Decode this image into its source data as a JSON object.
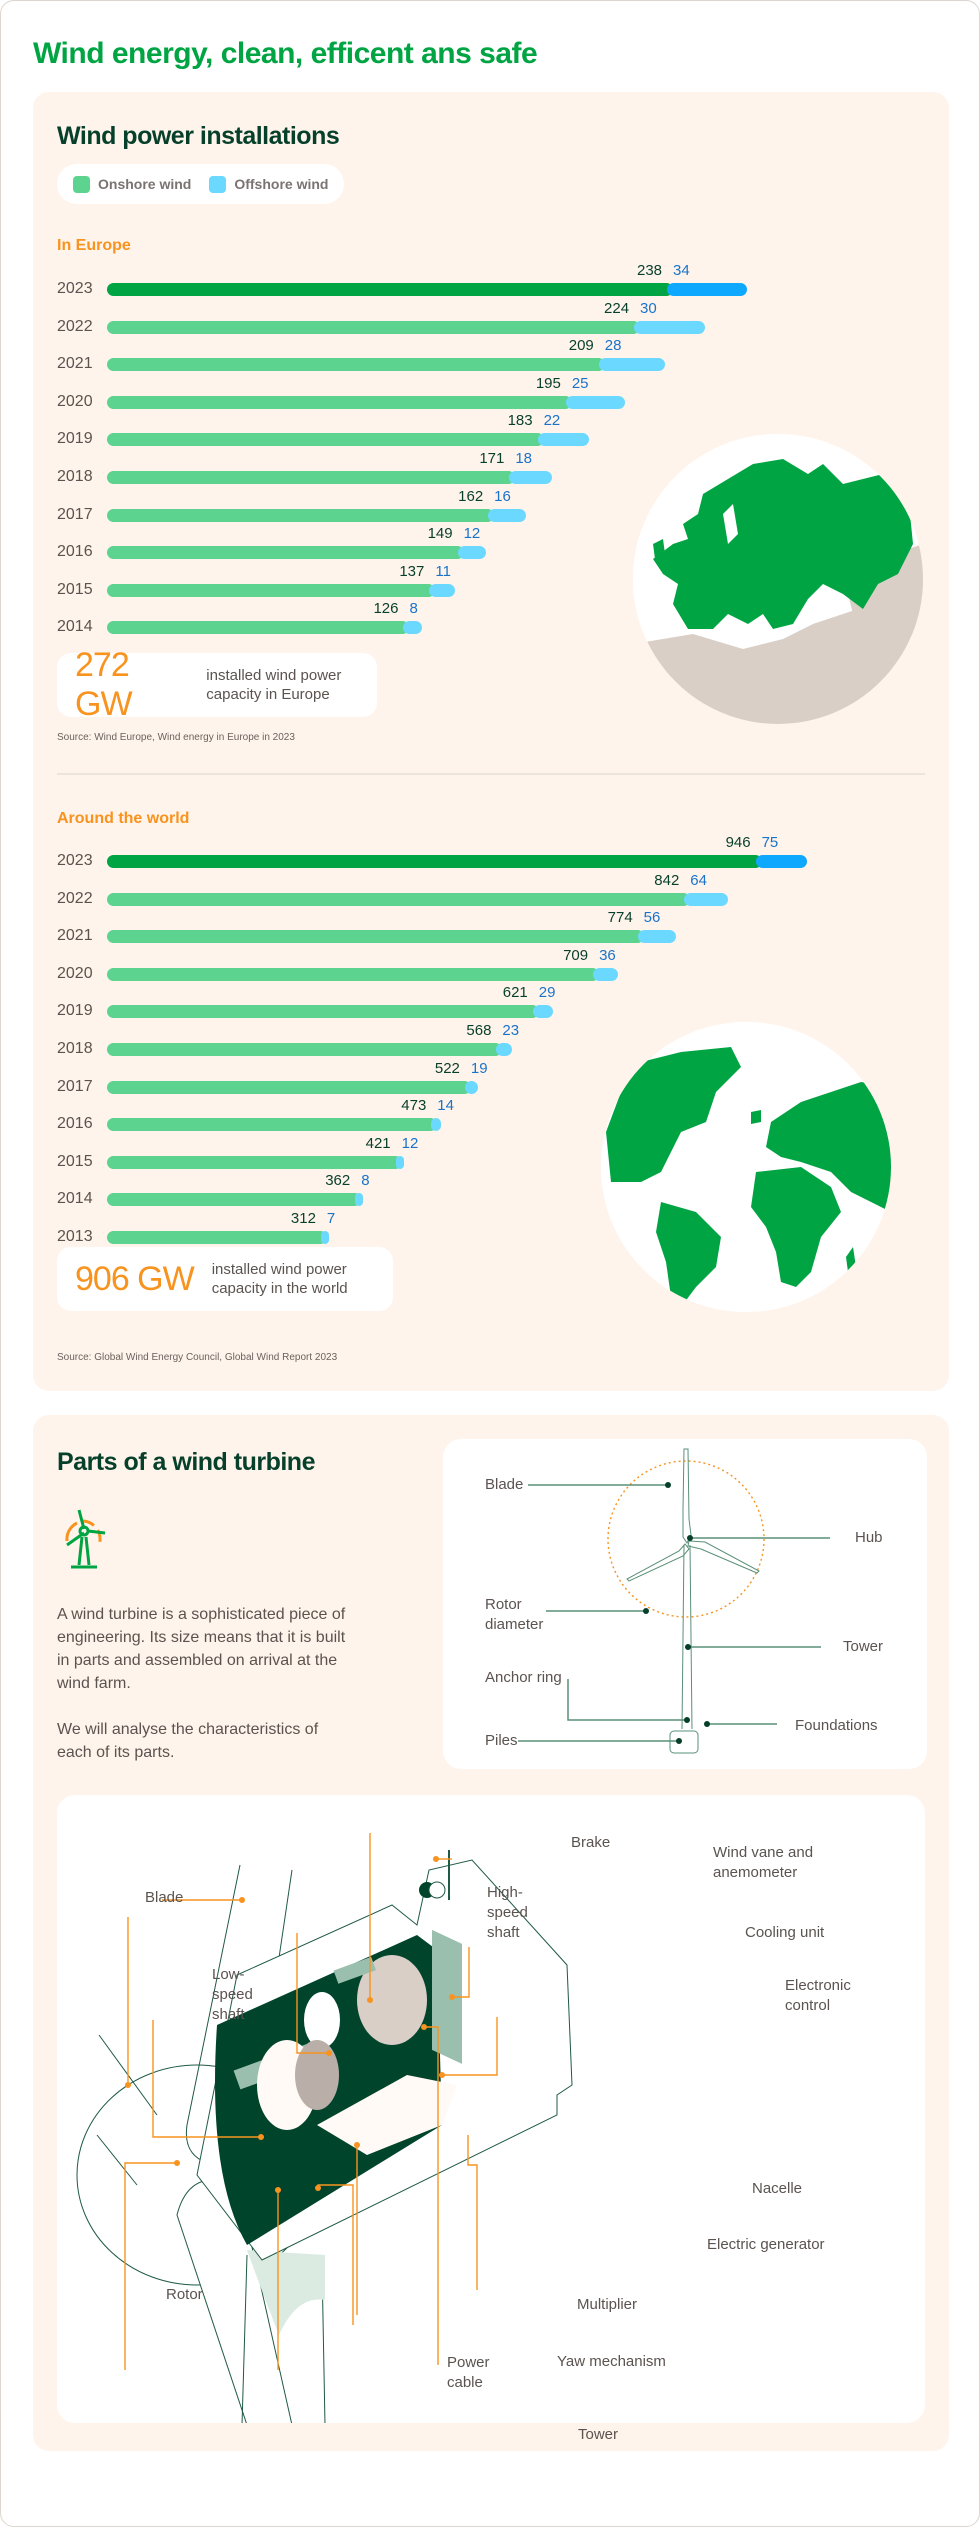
{
  "header": {
    "title_bold": "Wind energy",
    "title_rest": ", clean, efficent ans safe"
  },
  "installations": {
    "title": "Wind power installations",
    "legend": [
      {
        "label": "Onshore wind",
        "color": "#5cd38e"
      },
      {
        "label": "Offshore wind",
        "color": "#6bd9ff"
      }
    ],
    "europe": {
      "label": "In Europe",
      "stat_value": "272 GW",
      "stat_text": "installed wind power capacity in Europe",
      "source": "Source: Wind Europe, Wind energy in Europe in 2023",
      "map_icon": "europe-map"
    },
    "world": {
      "label": "Around the world",
      "stat_value": "906 GW",
      "stat_text": "installed wind power capacity in the world",
      "source": "Source: Global Wind Energy Council, Global Wind Report 2023",
      "map_icon": "world-map"
    }
  },
  "chart_data": [
    {
      "type": "bar",
      "orientation": "horizontal-stacked",
      "title": "Wind power installations — In Europe",
      "categories": [
        "2023",
        "2022",
        "2021",
        "2020",
        "2019",
        "2018",
        "2017",
        "2016",
        "2015",
        "2014"
      ],
      "series": [
        {
          "name": "Onshore wind",
          "values": [
            238,
            224,
            209,
            195,
            183,
            171,
            162,
            149,
            137,
            126
          ]
        },
        {
          "name": "Offshore wind",
          "values": [
            34,
            30,
            28,
            25,
            22,
            18,
            16,
            12,
            11,
            8
          ]
        }
      ],
      "unit": "GW",
      "legend_position": "top"
    },
    {
      "type": "bar",
      "orientation": "horizontal-stacked",
      "title": "Wind power installations — Around the world",
      "categories": [
        "2023",
        "2022",
        "2021",
        "2020",
        "2019",
        "2018",
        "2017",
        "2016",
        "2015",
        "2014",
        "2013"
      ],
      "series": [
        {
          "name": "Onshore wind",
          "values": [
            946,
            842,
            774,
            709,
            621,
            568,
            522,
            473,
            421,
            362,
            312
          ]
        },
        {
          "name": "Offshore wind",
          "values": [
            75,
            64,
            56,
            36,
            29,
            23,
            19,
            14,
            12,
            8,
            7
          ]
        }
      ],
      "unit": "GW",
      "legend_position": "top"
    }
  ],
  "colors": {
    "brand_green": "#00a443",
    "dark_green": "#063f2a",
    "onshore_highlight": "#00a443",
    "offshore_highlight": "#0fa8ff",
    "onshore": "#5cd38e",
    "offshore": "#6bd9ff",
    "orange": "#f7931e",
    "panel_bg": "#fff4ec"
  },
  "parts": {
    "title": "Parts of a wind turbine",
    "icon": "wind-turbine-icon",
    "paragraphs": [
      "A wind turbine is a sophisticated piece of engineering. Its size means that it is built in parts and assembled on arrival at the wind farm.",
      "We will analyse the characteristics of each of its parts."
    ],
    "overview_labels": {
      "blade": "Blade",
      "hub": "Hub",
      "rotor_diameter": "Rotor diameter",
      "tower": "Tower",
      "anchor_ring": "Anchor ring",
      "foundations": "Foundations",
      "piles": "Piles"
    },
    "nacelle_labels": {
      "brake": "Brake",
      "wind_vane": "Wind vane and anemometer",
      "blade": "Blade",
      "high_speed_shaft": "High-speed shaft",
      "cooling_unit": "Cooling unit",
      "low_speed_shaft": "Low-speed shaft",
      "electronic_control": "Electronic control",
      "nacelle": "Nacelle",
      "electric_generator": "Electric generator",
      "rotor": "Rotor",
      "multiplier": "Multiplier",
      "yaw_mechanism": "Yaw mechanism",
      "power_cable": "Power cable",
      "tower": "Tower"
    }
  }
}
